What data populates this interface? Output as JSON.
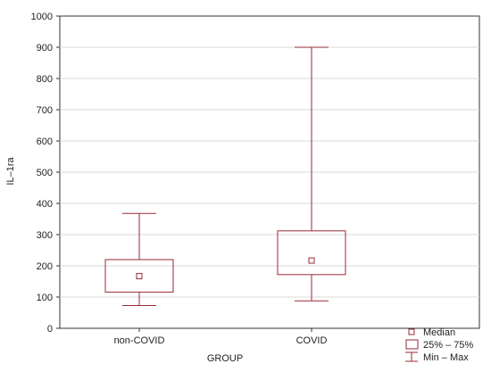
{
  "chart_data": {
    "type": "box",
    "title": "",
    "xlabel": "GROUP",
    "ylabel": "IL–1ra",
    "ylim": [
      0,
      1000
    ],
    "yticks": [
      0,
      100,
      200,
      300,
      400,
      500,
      600,
      700,
      800,
      900,
      1000
    ],
    "grid": true,
    "categories": [
      "non-COVID",
      "COVID"
    ],
    "boxes": [
      {
        "category": "non-COVID",
        "min": 73,
        "q1": 116,
        "median": 167,
        "q3": 220,
        "max": 368
      },
      {
        "category": "COVID",
        "min": 88,
        "q1": 172,
        "median": 217,
        "q3": 312,
        "max": 900
      }
    ],
    "legend": {
      "placement": "bottom-right",
      "items": [
        {
          "symbol": "median-marker",
          "label": "Median"
        },
        {
          "symbol": "box",
          "label": "25% – 75%"
        },
        {
          "symbol": "whisker",
          "label": "Min – Max"
        }
      ]
    },
    "colors": {
      "box": "#9a2a35",
      "grid": "#d9d9d9",
      "axis": "#333333"
    }
  }
}
